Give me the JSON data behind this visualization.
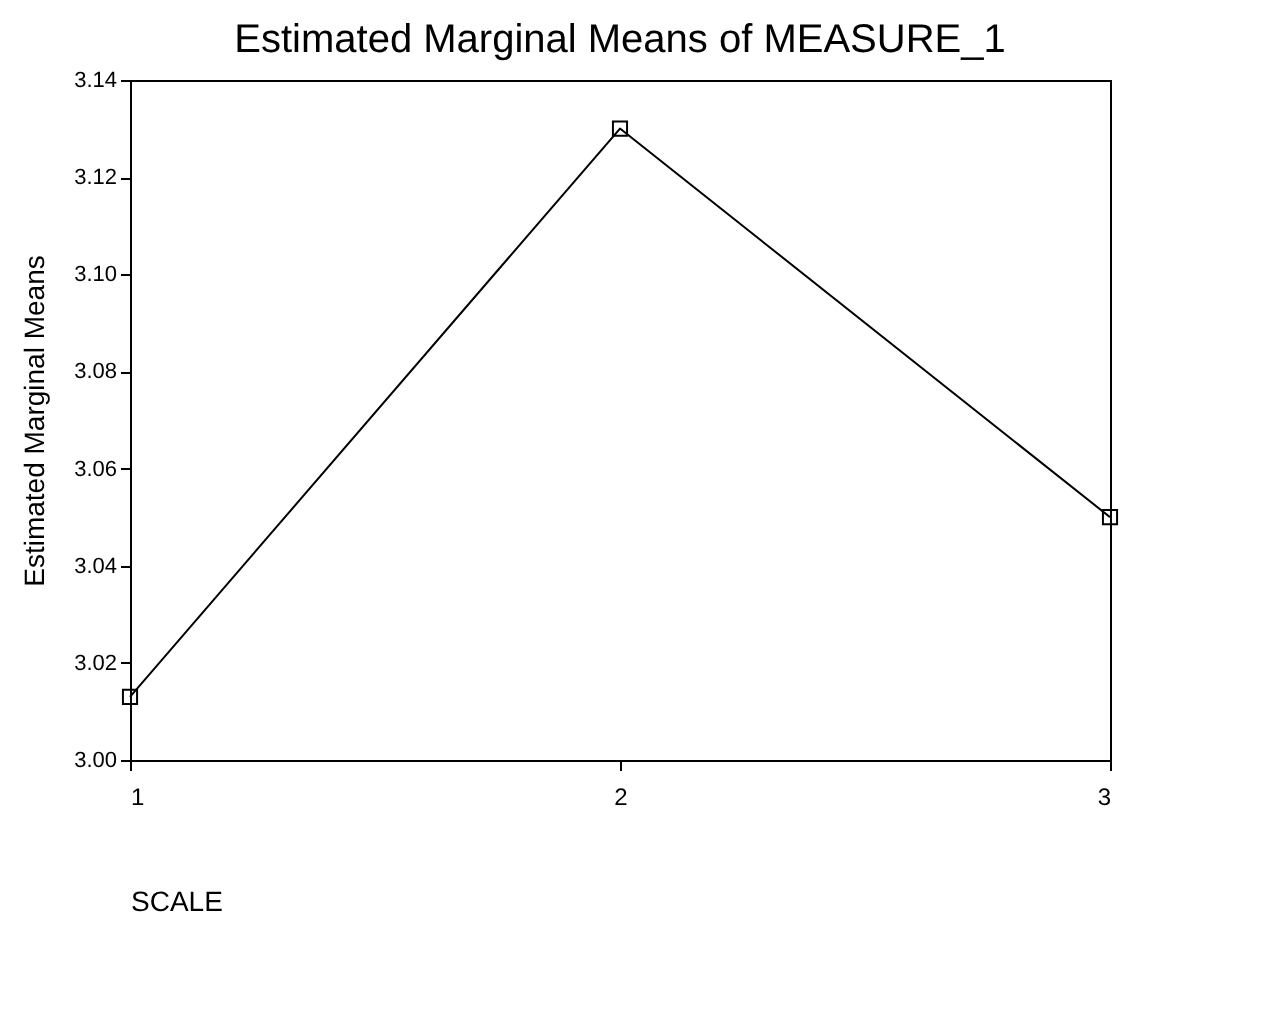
{
  "chart_data": {
    "type": "line",
    "title": "Estimated Marginal Means of MEASURE_1",
    "xlabel": "SCALE",
    "ylabel": "Estimated Marginal Means",
    "x": [
      1,
      2,
      3
    ],
    "series": [
      {
        "color": "#000000",
        "values": [
          3.013,
          3.13,
          3.05
        ]
      }
    ],
    "xlim": [
      1,
      3
    ],
    "xticks": [
      1,
      2,
      3
    ],
    "ylim": [
      3.0,
      3.14
    ],
    "yticks": [
      {
        "value": 3.0,
        "label": "3.00"
      },
      {
        "value": 3.02,
        "label": "3.02"
      },
      {
        "value": 3.04,
        "label": "3.04"
      },
      {
        "value": 3.06,
        "label": "3.06"
      },
      {
        "value": 3.08,
        "label": "3.08"
      },
      {
        "value": 3.1,
        "label": "3.10"
      },
      {
        "value": 3.12,
        "label": "3.12"
      },
      {
        "value": 3.14,
        "label": "3.14"
      }
    ],
    "marker": "square",
    "grid": false
  }
}
